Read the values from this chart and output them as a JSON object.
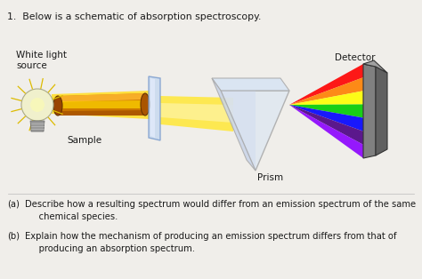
{
  "bg_color": "#f0eeea",
  "title_text": "1.  Below is a schematic of absorption spectroscopy.",
  "title_fontsize": 7.8,
  "label_white_light": "White light\nsource",
  "label_sample": "Sample",
  "label_detector": "Detector",
  "label_prism": "Prism",
  "qa_label": "(a)",
  "qa_text": "Describe how a resulting spectrum would differ from an emission spectrum of the same\n     chemical species.",
  "qb_label": "(b)",
  "qb_text": "Explain how the mechanism of producing an emission spectrum differs from that of\n     producing an absorption spectrum.",
  "text_color": "#1a1a1a",
  "rainbow_colors": [
    "#FF0000",
    "#FF7F00",
    "#FFFF00",
    "#00CC00",
    "#0000FF",
    "#4B0082",
    "#8B00FF"
  ]
}
